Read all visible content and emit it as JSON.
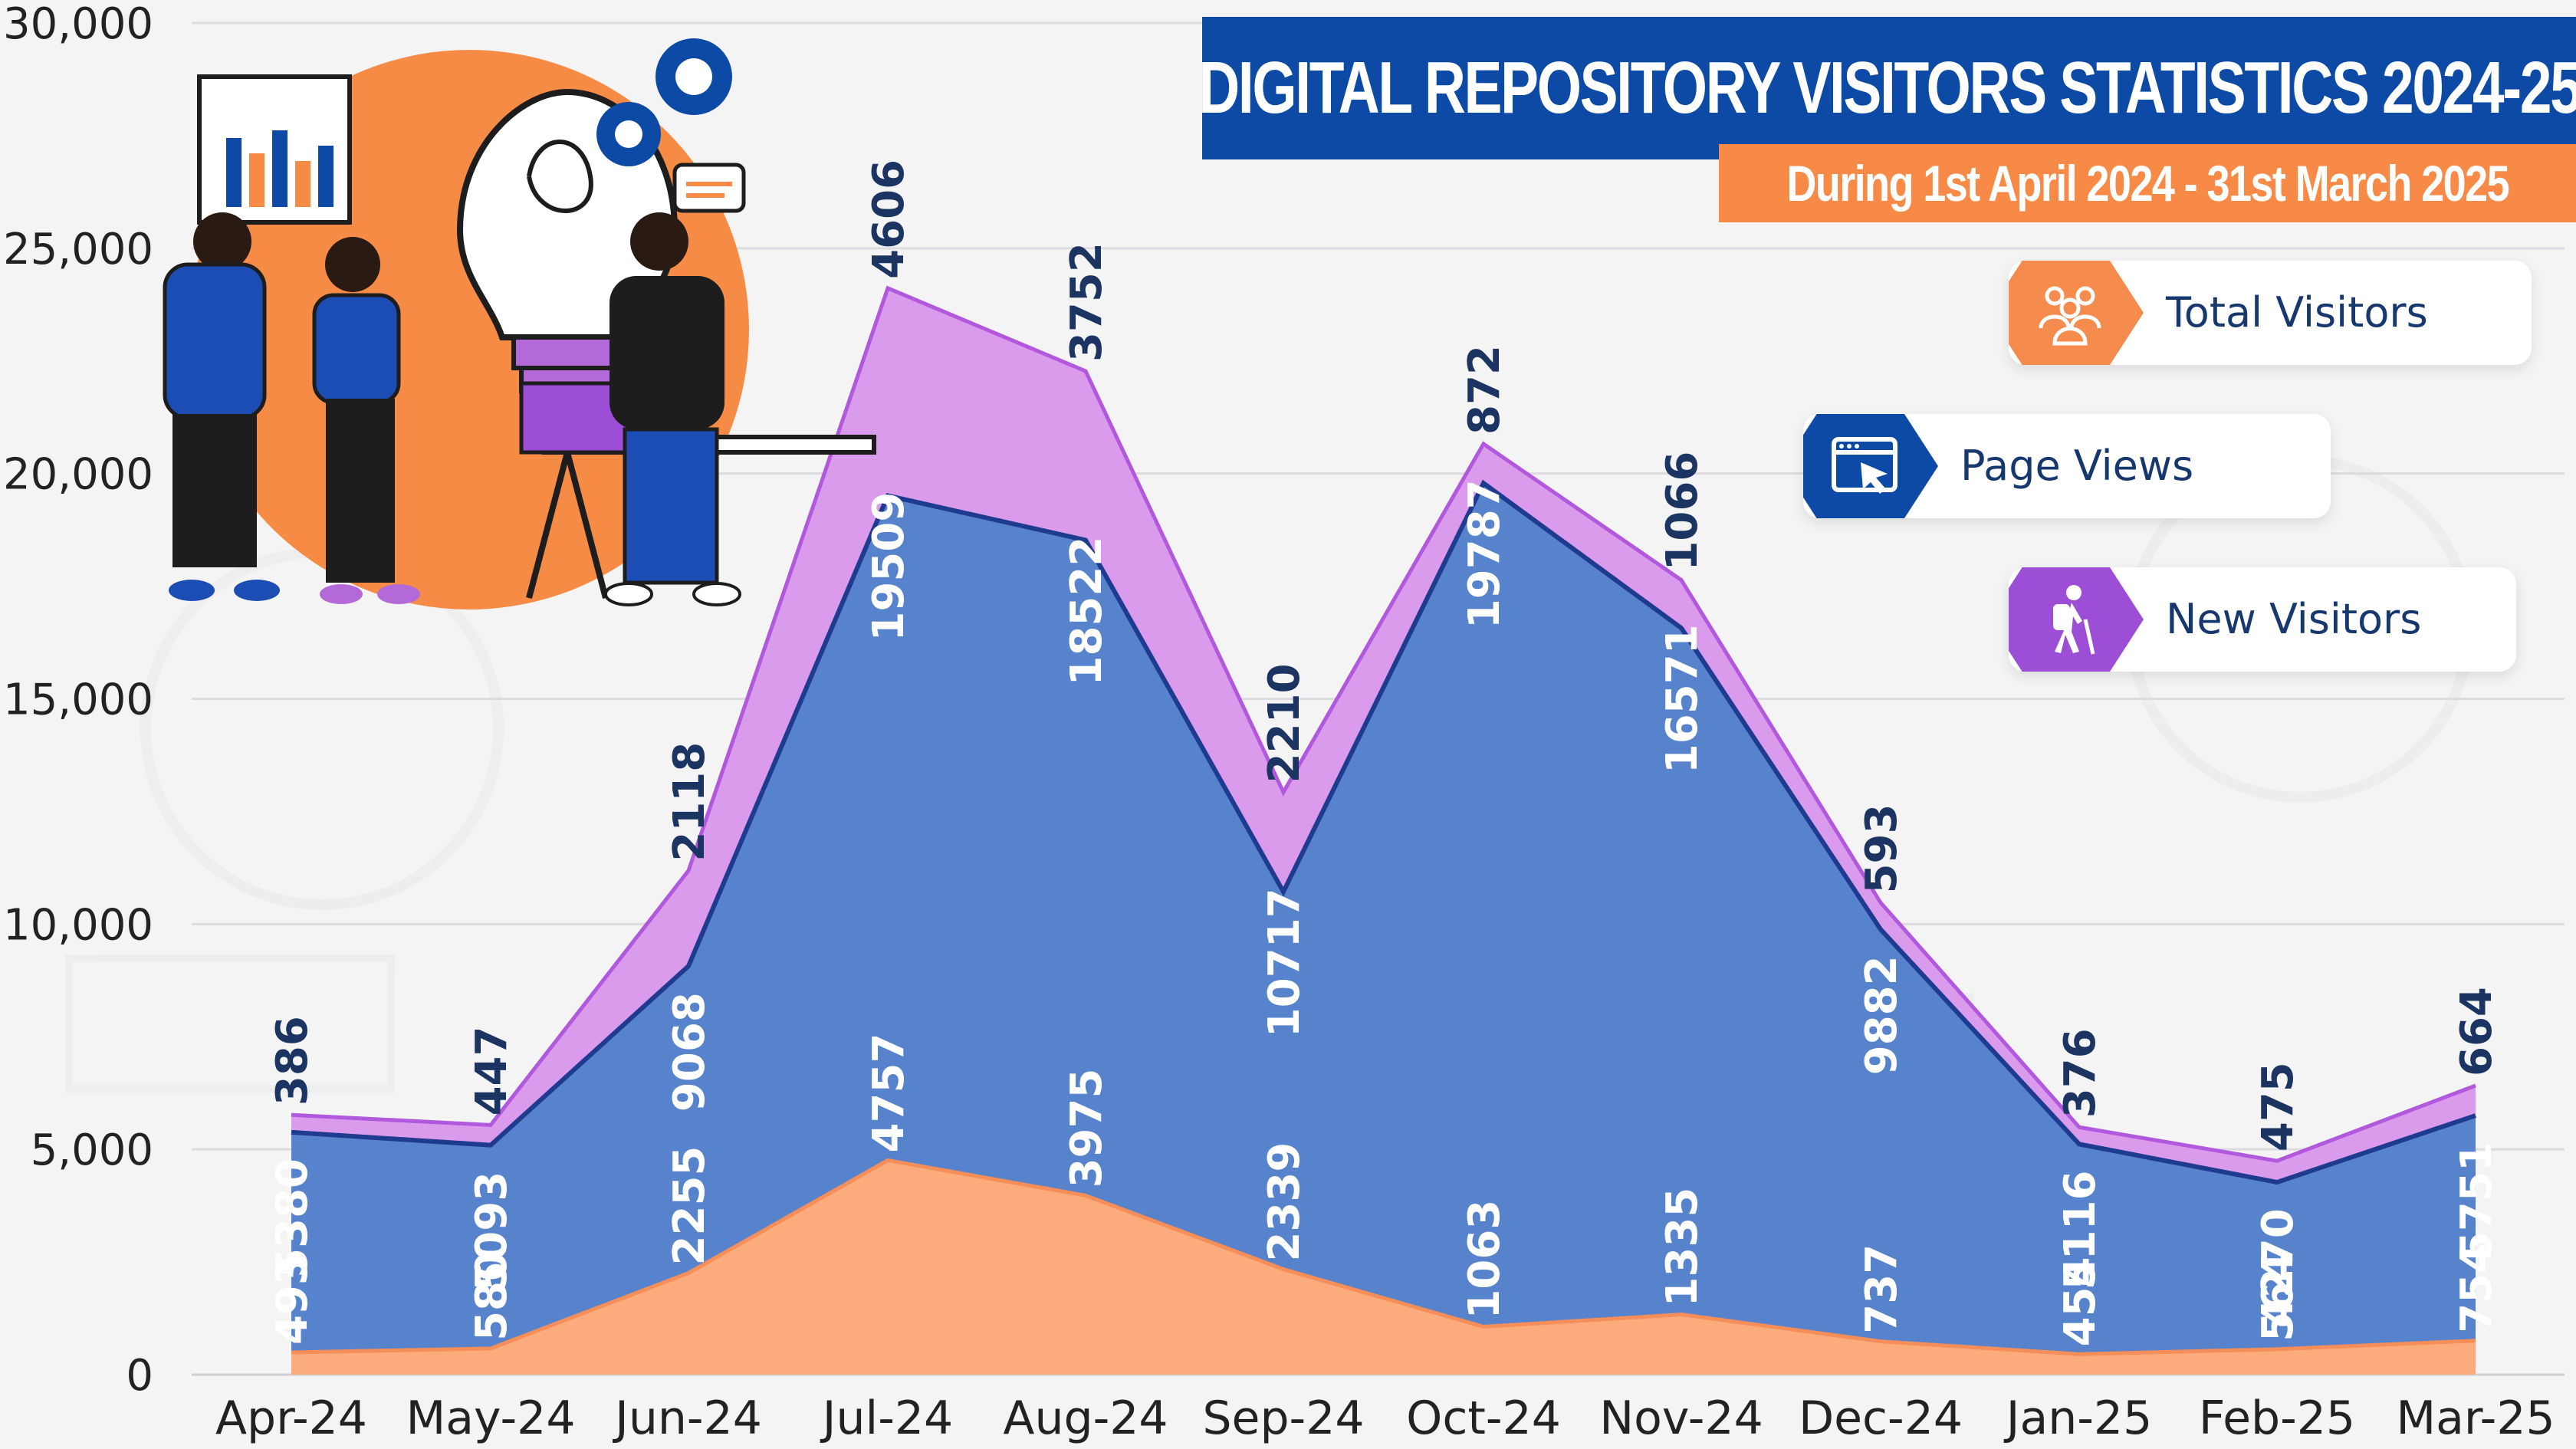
{
  "chart_data": {
    "type": "area",
    "title": "DIGITAL REPOSITORY VISITORS STATISTICS 2024-25",
    "subtitle": "During 1st April 2024 - 31st March 2025",
    "categories": [
      "Apr-24",
      "May-24",
      "Jun-24",
      "Jul-24",
      "Aug-24",
      "Sep-24",
      "Oct-24",
      "Nov-24",
      "Dec-24",
      "Jan-25",
      "Feb-25",
      "Mar-25"
    ],
    "series": [
      {
        "name": "Total Visitors",
        "color": "#fcac7c",
        "values": [
          493,
          580,
          2255,
          4757,
          3975,
          2339,
          1063,
          1335,
          737,
          454,
          564,
          754
        ]
      },
      {
        "name": "Page Views",
        "color": "#5683cb",
        "values": [
          5380,
          5093,
          9068,
          19509,
          18522,
          10717,
          19787,
          16571,
          9882,
          5116,
          4270,
          5751
        ]
      },
      {
        "name": "New Visitors",
        "color": "#d996ec",
        "values": [
          386,
          447,
          2118,
          4606,
          3752,
          2210,
          872,
          1066,
          593,
          376,
          475,
          664
        ]
      }
    ],
    "stacked": true,
    "ylim": [
      0,
      30000
    ],
    "yticks": [
      0,
      5000,
      10000,
      15000,
      20000,
      25000,
      30000
    ],
    "ytick_labels": [
      "0",
      "5,000",
      "10,000",
      "15,000",
      "20,000",
      "25,000",
      "30,000"
    ],
    "grid": true,
    "legend_position": "top-right"
  },
  "colors": {
    "page_views_line": "#1f3b8f",
    "new_visitors_line": "#b158dc",
    "total_line": "#f68e5a",
    "label_dark": "#1b3461",
    "label_light": "#ffffff",
    "title_bg": "#0d4aa6",
    "subtitle_bg": "#f78a47"
  },
  "legend": [
    {
      "label": "Total Visitors",
      "icon": "group-people-icon",
      "icon_color": "#f58b4c"
    },
    {
      "label": "Page Views",
      "icon": "browser-cursor-icon",
      "icon_color": "#0d4aa6"
    },
    {
      "label": "New Visitors",
      "icon": "hiker-backpack-icon",
      "icon_color": "#9c4fd6"
    }
  ]
}
